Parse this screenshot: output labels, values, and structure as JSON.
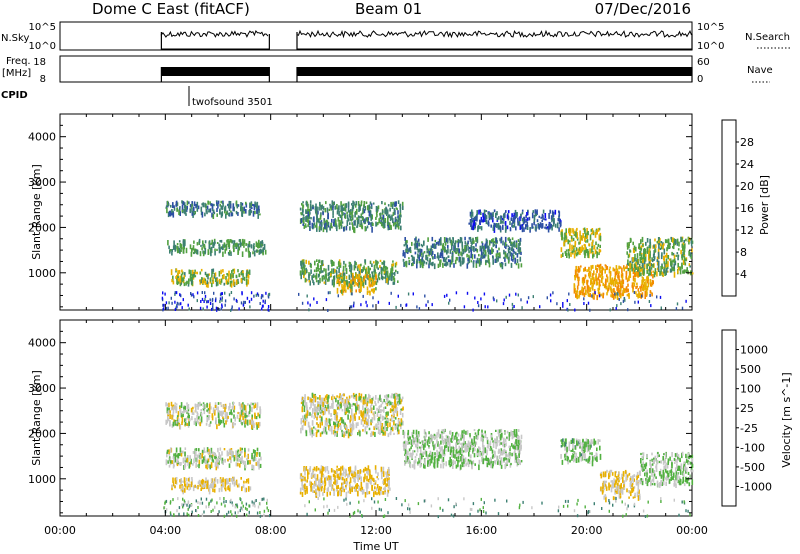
{
  "header": {
    "station": "Dome C East (fitACF)",
    "beam": "Beam 01",
    "date": "07/Dec/2016"
  },
  "summary_panels": {
    "nsky_label": "N.Sky",
    "nsky_ticks": [
      "10^5",
      "10^0"
    ],
    "nsearch_label": "N.Search",
    "freq_label_1": "Freq.",
    "freq_label_2": "[MHz]",
    "freq_ticks": [
      "18",
      "8"
    ],
    "nave_label": "Nave",
    "nave_ticks": [
      "60",
      "0"
    ],
    "cpid_label": "CPID",
    "cpid_value": "twofsound 3501"
  },
  "chart_data": [
    {
      "type": "heatmap",
      "panel": "power",
      "ylabel": "Slant Range [km]",
      "xlabel": "",
      "xlim": [
        0,
        24
      ],
      "ylim": [
        180,
        4500
      ],
      "y_ticks": [
        1000,
        2000,
        3000,
        4000
      ],
      "colorbar": {
        "label": "Power [dB]",
        "ticks": [
          4,
          8,
          12,
          16,
          20,
          24,
          28
        ],
        "range": [
          0,
          32
        ],
        "colors": [
          "#0b0bf0",
          "#2c4fa3",
          "#3c7f72",
          "#51a040",
          "#e8b000",
          "#f38a00",
          "#f05a00",
          "#e60000"
        ]
      },
      "data_ranges_ut": [
        [
          3.85,
          7.95
        ],
        [
          9.0,
          24.0
        ]
      ],
      "echo_regions": [
        {
          "t0": 4.0,
          "t1": 7.6,
          "r0": 2300,
          "r1": 2600,
          "level": 9
        },
        {
          "t0": 4.0,
          "t1": 7.8,
          "r0": 1450,
          "r1": 1750,
          "level": 12
        },
        {
          "t0": 4.2,
          "t1": 7.2,
          "r0": 780,
          "r1": 1100,
          "level": 15
        },
        {
          "t0": 9.1,
          "t1": 13.0,
          "r0": 2000,
          "r1": 2600,
          "level": 11
        },
        {
          "t0": 9.1,
          "t1": 12.8,
          "r0": 800,
          "r1": 1300,
          "level": 13
        },
        {
          "t0": 10.5,
          "t1": 12.0,
          "r0": 600,
          "r1": 1000,
          "level": 18
        },
        {
          "t0": 13.0,
          "t1": 17.5,
          "r0": 1200,
          "r1": 1800,
          "level": 10
        },
        {
          "t0": 15.5,
          "t1": 19.0,
          "r0": 2000,
          "r1": 2400,
          "level": 7
        },
        {
          "t0": 19.0,
          "t1": 20.5,
          "r0": 1400,
          "r1": 2000,
          "level": 16
        },
        {
          "t0": 19.5,
          "t1": 22.5,
          "r0": 500,
          "r1": 1200,
          "level": 20
        },
        {
          "t0": 21.5,
          "t1": 24.0,
          "r0": 1000,
          "r1": 1800,
          "level": 14
        }
      ]
    },
    {
      "type": "heatmap",
      "panel": "velocity",
      "ylabel": "Slant Range [km]",
      "xlabel": "Time UT",
      "xlim": [
        0,
        24
      ],
      "ylim": [
        180,
        4500
      ],
      "x_ticks": [
        "00:00",
        "04:00",
        "08:00",
        "12:00",
        "16:00",
        "20:00",
        "00:00"
      ],
      "y_ticks": [
        1000,
        2000,
        3000,
        4000
      ],
      "colorbar": {
        "label": "Velocity [m s^-1]",
        "ticks": [
          "1000",
          "500",
          "100",
          "25",
          "-25",
          "-100",
          "-500",
          "-1000"
        ],
        "colors": [
          "#e60000",
          "#f05a00",
          "#f38a00",
          "#e8b000",
          "#c8c8c8",
          "#51b040",
          "#3c7f72",
          "#2c4fa3",
          "#0b0bf0"
        ]
      },
      "data_ranges_ut": [
        [
          3.85,
          7.95
        ],
        [
          9.0,
          24.0
        ]
      ],
      "echo_regions": [
        {
          "t0": 4.0,
          "t1": 7.6,
          "r0": 2200,
          "r1": 2700,
          "level": 0
        },
        {
          "t0": 4.0,
          "t1": 7.6,
          "r0": 1300,
          "r1": 1700,
          "level": 1
        },
        {
          "t0": 4.2,
          "t1": 7.2,
          "r0": 780,
          "r1": 1050,
          "level": -2
        },
        {
          "t0": 9.1,
          "t1": 13.0,
          "r0": 2000,
          "r1": 2900,
          "level": 0
        },
        {
          "t0": 9.1,
          "t1": 12.5,
          "r0": 700,
          "r1": 1300,
          "level": -2
        },
        {
          "t0": 13.0,
          "t1": 17.5,
          "r0": 1300,
          "r1": 2100,
          "level": 2
        },
        {
          "t0": 19.0,
          "t1": 20.5,
          "r0": 1400,
          "r1": 1900,
          "level": 3
        },
        {
          "t0": 20.5,
          "t1": 22.0,
          "r0": 600,
          "r1": 1200,
          "level": -2
        },
        {
          "t0": 22.0,
          "t1": 24.0,
          "r0": 900,
          "r1": 1600,
          "level": 2
        }
      ]
    }
  ]
}
